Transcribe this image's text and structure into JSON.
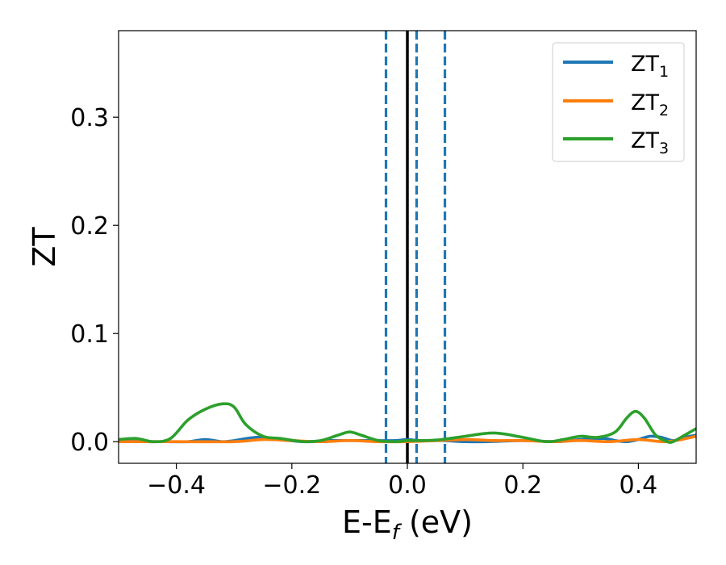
{
  "chart_data": {
    "type": "line",
    "xlabel": "E-E",
    "xlabel_sub": "f",
    "xlabel_unit": " (eV)",
    "ylabel": "ZT",
    "xlim": [
      -0.5,
      0.5
    ],
    "ylim": [
      -0.02,
      0.38
    ],
    "xticks": [
      -0.4,
      -0.2,
      0.0,
      0.2,
      0.4
    ],
    "xtick_labels": [
      "−0.4",
      "−0.2",
      "0.0",
      "0.2",
      "0.4"
    ],
    "yticks": [
      0.0,
      0.1,
      0.2,
      0.3
    ],
    "ytick_labels": [
      "0.0",
      "0.1",
      "0.2",
      "0.3"
    ],
    "legend_position": "top-right",
    "grid": false,
    "series": [
      {
        "name": "ZT1",
        "name_main": "ZT",
        "name_sub": "1",
        "color": "#1f77b4",
        "x": [
          -0.5,
          -0.45,
          -0.42,
          -0.38,
          -0.35,
          -0.32,
          -0.3,
          -0.26,
          -0.22,
          -0.18,
          -0.14,
          -0.1,
          -0.06,
          -0.02,
          0.0,
          0.02,
          0.06,
          0.1,
          0.14,
          0.2,
          0.26,
          0.3,
          0.34,
          0.36,
          0.38,
          0.4,
          0.42,
          0.44,
          0.46,
          0.48,
          0.5
        ],
        "y": [
          0.001,
          0.0,
          0.0,
          0.0,
          0.002,
          0.0,
          0.001,
          0.004,
          0.002,
          0.0,
          0.001,
          0.001,
          0.001,
          0.001,
          0.002,
          0.001,
          0.001,
          0.0,
          0.0,
          0.001,
          0.0,
          0.002,
          0.003,
          0.001,
          0.0,
          0.002,
          0.005,
          0.004,
          0.001,
          0.004,
          0.006
        ]
      },
      {
        "name": "ZT2",
        "name_main": "ZT",
        "name_sub": "2",
        "color": "#ff7f0e",
        "x": [
          -0.5,
          -0.4,
          -0.3,
          -0.25,
          -0.2,
          -0.15,
          -0.1,
          -0.05,
          0.0,
          0.05,
          0.1,
          0.15,
          0.2,
          0.25,
          0.3,
          0.35,
          0.4,
          0.45,
          0.5
        ],
        "y": [
          0.0,
          0.0,
          0.0,
          0.002,
          0.001,
          0.0,
          0.001,
          0.0,
          0.0,
          0.001,
          0.002,
          0.001,
          0.001,
          0.0,
          0.001,
          0.0,
          0.002,
          0.0,
          0.005
        ]
      },
      {
        "name": "ZT3",
        "name_main": "ZT",
        "name_sub": "3",
        "color": "#2ca02c",
        "x": [
          -0.5,
          -0.47,
          -0.44,
          -0.41,
          -0.38,
          -0.35,
          -0.32,
          -0.3,
          -0.28,
          -0.25,
          -0.22,
          -0.18,
          -0.15,
          -0.12,
          -0.1,
          -0.08,
          -0.05,
          -0.02,
          0.0,
          0.03,
          0.06,
          0.1,
          0.15,
          0.2,
          0.24,
          0.27,
          0.3,
          0.33,
          0.36,
          0.38,
          0.395,
          0.41,
          0.43,
          0.45,
          0.46,
          0.48,
          0.5
        ],
        "y": [
          0.002,
          0.003,
          0.0,
          0.003,
          0.02,
          0.03,
          0.035,
          0.032,
          0.016,
          0.005,
          0.003,
          0.0,
          0.001,
          0.006,
          0.009,
          0.006,
          0.001,
          0.0,
          0.001,
          0.001,
          0.002,
          0.005,
          0.008,
          0.004,
          0.0,
          0.002,
          0.005,
          0.004,
          0.009,
          0.022,
          0.028,
          0.022,
          0.006,
          0.0,
          0.0,
          0.006,
          0.012
        ]
      }
    ],
    "vlines": [
      {
        "x": -0.037,
        "style": "dashed",
        "color": "#1f77b4"
      },
      {
        "x": 0.0,
        "style": "solid",
        "color": "#000000"
      },
      {
        "x": 0.016,
        "style": "dashed",
        "color": "#1f77b4"
      },
      {
        "x": 0.065,
        "style": "dashed",
        "color": "#1f77b4"
      }
    ]
  }
}
